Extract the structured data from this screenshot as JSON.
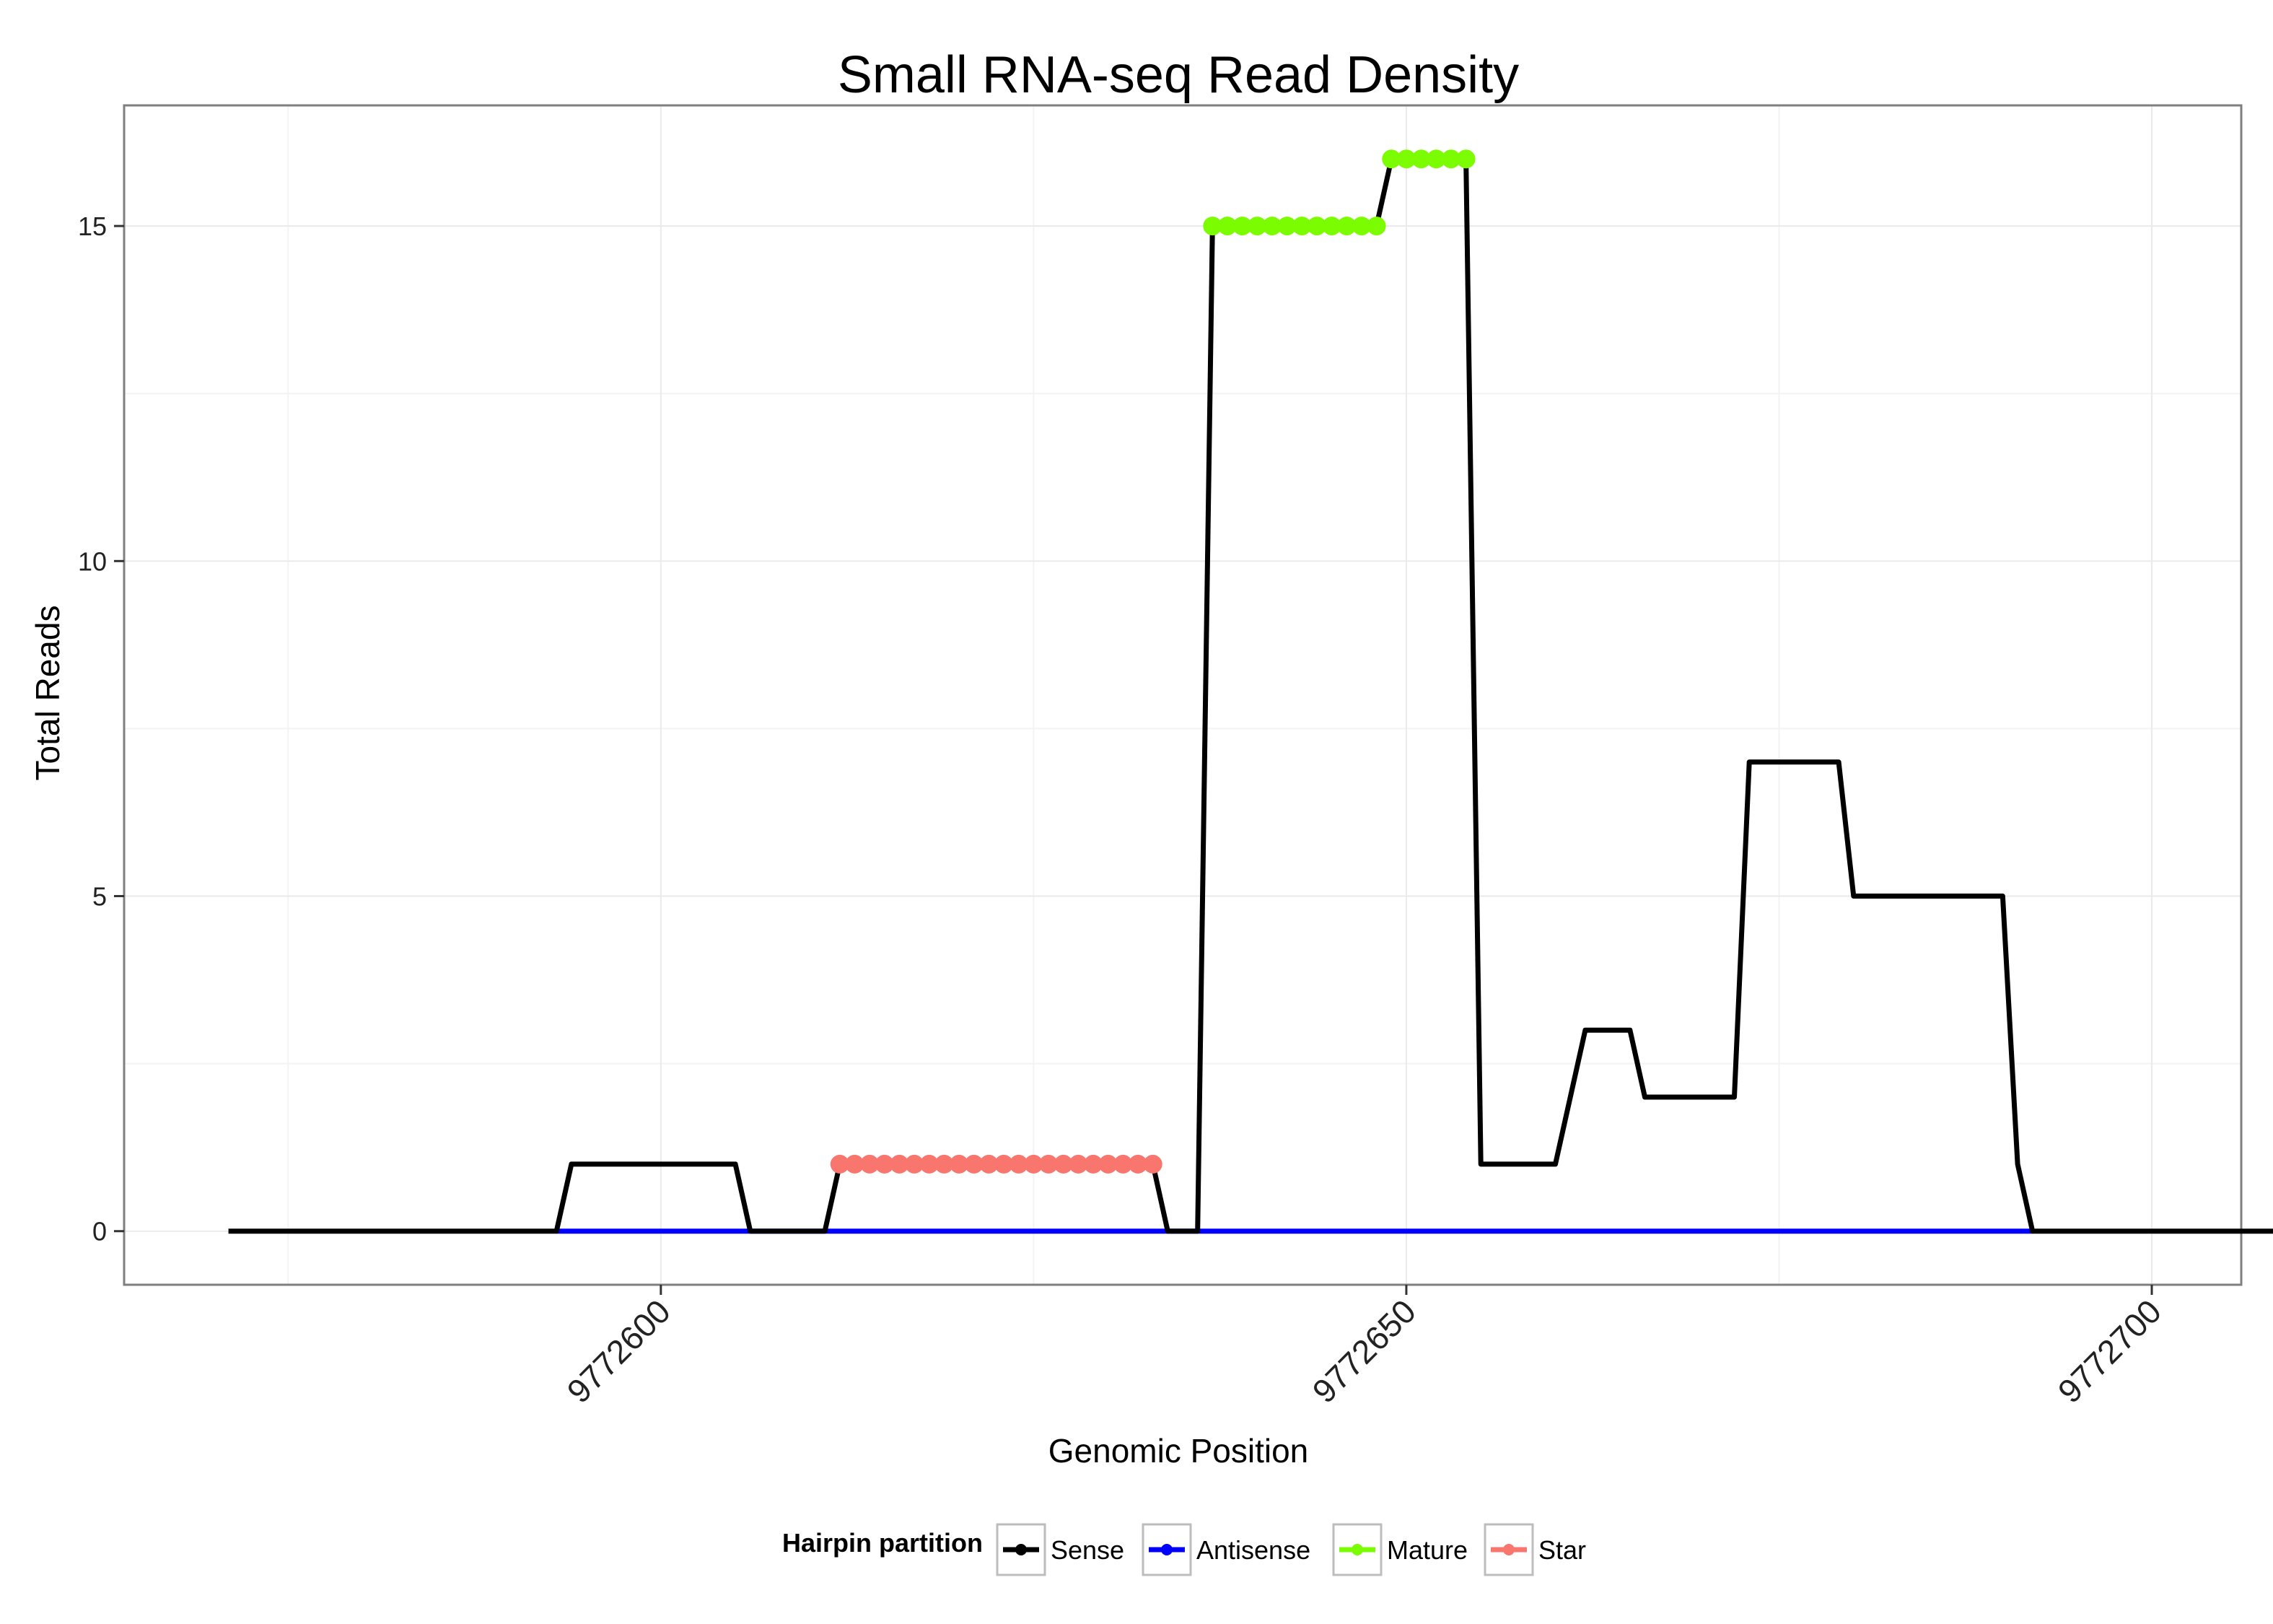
{
  "chart_data": {
    "type": "line",
    "title": "Small RNA-seq Read Density",
    "xlabel": "Genomic Position",
    "ylabel": "Total Reads",
    "xlim": [
      9772564,
      9772706
    ],
    "ylim": [
      -0.8,
      16.8
    ],
    "xticks": [
      9772600,
      9772650,
      9772700
    ],
    "yticks": [
      0,
      5,
      10,
      15
    ],
    "grid": true,
    "legend": {
      "title": "Hairpin partition",
      "placement": "bottom",
      "items": [
        "Sense",
        "Antisense",
        "Mature",
        "Star"
      ]
    },
    "series": [
      {
        "name": "Sense",
        "color": "#000000",
        "x": [
          9772571,
          9772593,
          9772594,
          9772605,
          9772606,
          9772611,
          9772612,
          9772633,
          9772634,
          9772636,
          9772637,
          9772648,
          9772649,
          9772654,
          9772655,
          9772660,
          9772662,
          9772665,
          9772666,
          9772672,
          9772673,
          9772679,
          9772680,
          9772690,
          9772691,
          9772692,
          9772713
        ],
        "y": [
          0,
          0,
          1,
          1,
          0,
          0,
          1,
          1,
          0,
          0,
          15,
          15,
          16,
          16,
          1,
          1,
          3,
          3,
          2,
          2,
          7,
          7,
          5,
          5,
          1,
          0,
          0
        ]
      },
      {
        "name": "Antisense",
        "color": "#0000ff",
        "x": [
          9772593,
          9772692
        ],
        "y": [
          0,
          0
        ]
      },
      {
        "name": "Mature",
        "color": "#7cfc00",
        "x": [
          9772637,
          9772638,
          9772639,
          9772640,
          9772641,
          9772642,
          9772643,
          9772644,
          9772645,
          9772646,
          9772647,
          9772648,
          9772649,
          9772650,
          9772651,
          9772652,
          9772653,
          9772654
        ],
        "y": [
          15,
          15,
          15,
          15,
          15,
          15,
          15,
          15,
          15,
          15,
          15,
          15,
          16,
          16,
          16,
          16,
          16,
          16
        ]
      },
      {
        "name": "Star",
        "color": "#f8766d",
        "x": [
          9772612,
          9772613,
          9772614,
          9772615,
          9772616,
          9772617,
          9772618,
          9772619,
          9772620,
          9772621,
          9772622,
          9772623,
          9772624,
          9772625,
          9772626,
          9772627,
          9772628,
          9772629,
          9772630,
          9772631,
          9772632,
          9772633
        ],
        "y": [
          1,
          1,
          1,
          1,
          1,
          1,
          1,
          1,
          1,
          1,
          1,
          1,
          1,
          1,
          1,
          1,
          1,
          1,
          1,
          1,
          1,
          1
        ]
      }
    ]
  }
}
